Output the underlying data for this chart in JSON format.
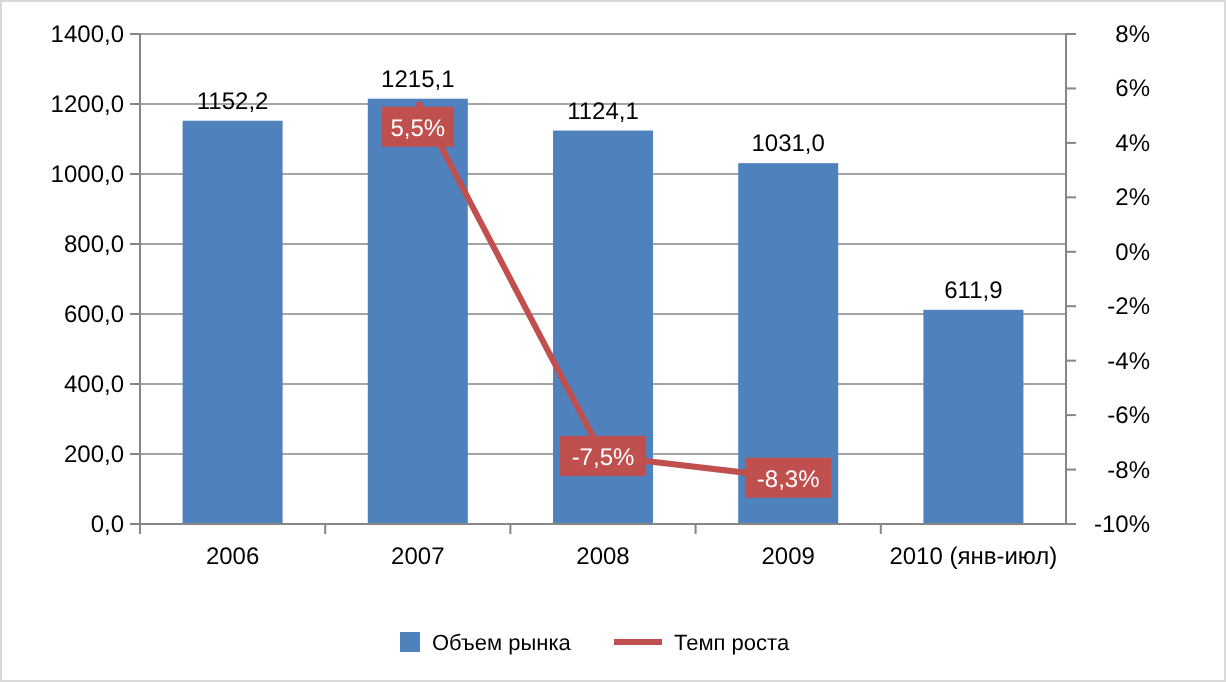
{
  "chart_data": {
    "type": "bar",
    "categories": [
      "2006",
      "2007",
      "2008",
      "2009",
      "2010 (янв-июл)"
    ],
    "series": [
      {
        "name": "Объем рынка",
        "color": "#4f81bd",
        "values": [
          1152.2,
          1215.1,
          1124.1,
          1031.0,
          611.9
        ],
        "value_labels": [
          "1152,2",
          "1215,1",
          "1124,1",
          "1031,0",
          "611,9"
        ]
      },
      {
        "name": "Темп роста",
        "type": "line",
        "axis": "y2",
        "color": "#c0504d",
        "values": [
          null,
          5.5,
          -7.5,
          -8.3,
          null
        ],
        "value_labels": [
          null,
          "5,5%",
          "-7,5%",
          "-8,3%",
          null
        ]
      }
    ],
    "ylim": [
      0,
      1400
    ],
    "yticks": [
      {
        "value": 0,
        "label": "0,0"
      },
      {
        "value": 200,
        "label": "200,0"
      },
      {
        "value": 400,
        "label": "400,0"
      },
      {
        "value": 600,
        "label": "600,0"
      },
      {
        "value": 800,
        "label": "800,0"
      },
      {
        "value": 1000,
        "label": "1000,0"
      },
      {
        "value": 1200,
        "label": "1200,0"
      },
      {
        "value": 1400,
        "label": "1400,0"
      }
    ],
    "y2lim": [
      -10,
      8
    ],
    "y2ticks": [
      {
        "value": -10,
        "label": "-10%"
      },
      {
        "value": -8,
        "label": "-8%"
      },
      {
        "value": -6,
        "label": "-6%"
      },
      {
        "value": -4,
        "label": "-4%"
      },
      {
        "value": -2,
        "label": "-2%"
      },
      {
        "value": 0,
        "label": "0%"
      },
      {
        "value": 2,
        "label": "2%"
      },
      {
        "value": 4,
        "label": "4%"
      },
      {
        "value": 6,
        "label": "6%"
      },
      {
        "value": 8,
        "label": "8%"
      }
    ],
    "grid": "y",
    "legend": "bottom",
    "line_style": "solid"
  }
}
